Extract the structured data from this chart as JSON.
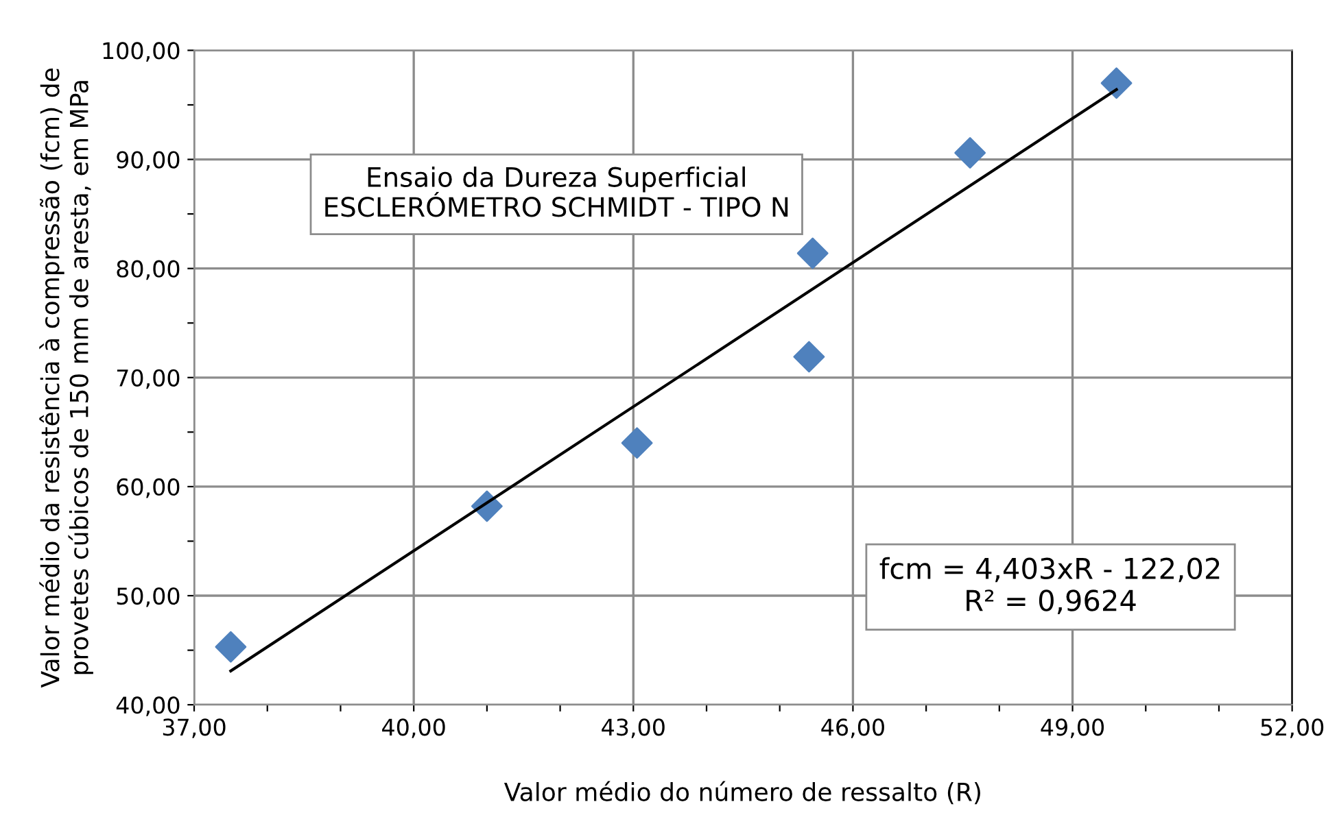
{
  "chart_data": {
    "type": "scatter",
    "xlabel": "Valor médio do número de ressalto (R)",
    "ylabel": "Valor médio da resistência à compressão (fcm) de\nprovetes cúbicos de 150 mm de aresta, em MPa",
    "annotations": [
      "Ensaio da Dureza Superficial\nESCLERÓMETRO SCHMIDT - TIPO N",
      "fcm = 4,403xR - 122,02\nR² = 0,9624"
    ],
    "series": [
      {
        "color": "#4f81bd",
        "marker": "diamond",
        "x": [
          37.5,
          41.0,
          43.05,
          45.4,
          45.45,
          47.6,
          49.6
        ],
        "values": [
          45.3,
          58.2,
          64.0,
          71.9,
          81.4,
          90.6,
          97.0
        ]
      },
      {
        "type": "line",
        "color": "#000000",
        "line_style": "solid",
        "x": [
          37.5,
          49.6
        ],
        "values": [
          43.1,
          96.4
        ]
      }
    ],
    "xlim": [
      37,
      52
    ],
    "ylim": [
      40,
      100
    ],
    "xticks": [
      {
        "value": 37,
        "label": "37,00"
      },
      {
        "value": 38,
        "label": null
      },
      {
        "value": 39,
        "label": null
      },
      {
        "value": 40,
        "label": "40,00"
      },
      {
        "value": 41,
        "label": null
      },
      {
        "value": 42,
        "label": null
      },
      {
        "value": 43,
        "label": "43,00"
      },
      {
        "value": 44,
        "label": null
      },
      {
        "value": 45,
        "label": null
      },
      {
        "value": 46,
        "label": "46,00"
      },
      {
        "value": 47,
        "label": null
      },
      {
        "value": 48,
        "label": null
      },
      {
        "value": 49,
        "label": "49,00"
      },
      {
        "value": 50,
        "label": null
      },
      {
        "value": 51,
        "label": null
      },
      {
        "value": 52,
        "label": "52,00"
      }
    ],
    "yticks": [
      {
        "value": 40,
        "label": "40,00"
      },
      {
        "value": 45,
        "label": null
      },
      {
        "value": 50,
        "label": "50,00"
      },
      {
        "value": 55,
        "label": null
      },
      {
        "value": 60,
        "label": "60,00"
      },
      {
        "value": 65,
        "label": null
      },
      {
        "value": 70,
        "label": "70,00"
      },
      {
        "value": 75,
        "label": null
      },
      {
        "value": 80,
        "label": "80,00"
      },
      {
        "value": 85,
        "label": null
      },
      {
        "value": 90,
        "label": "90,00"
      },
      {
        "value": 95,
        "label": null
      },
      {
        "value": 100,
        "label": "100,00"
      }
    ],
    "grid": true
  }
}
